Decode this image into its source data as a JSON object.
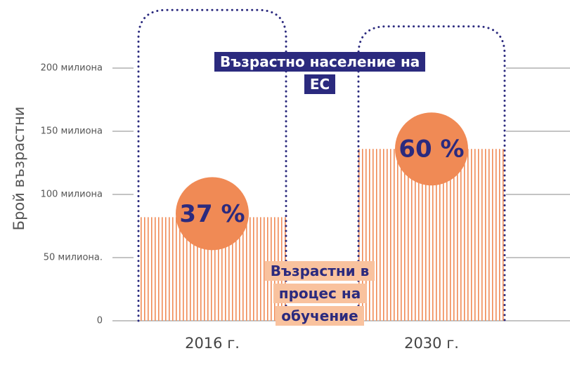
{
  "chart_data": {
    "type": "bar",
    "y_label": "Брой възрастни",
    "categories": [
      "2016 г.",
      "2030 г."
    ],
    "series": [
      {
        "name": "Възрастно население на ЕС",
        "color": "#2b2a7e",
        "values": [
          246,
          233
        ]
      },
      {
        "name": "Възрастни в процес на обучение",
        "color": "#f08a55",
        "values": [
          82,
          136
        ]
      }
    ],
    "percent": {
      "values": [
        37,
        60
      ],
      "value_labels": [
        "37 %",
        "60 %"
      ],
      "color": "#f08a55"
    },
    "ylim": [
      0,
      250
    ],
    "yticks": [
      0,
      {
        "value": 50,
        "label": "50 милиона."
      },
      {
        "value": 100,
        "label": "100 милиона"
      },
      {
        "value": 150,
        "label": "150 милиона"
      },
      {
        "value": 200,
        "label": "200 милиона"
      }
    ]
  }
}
